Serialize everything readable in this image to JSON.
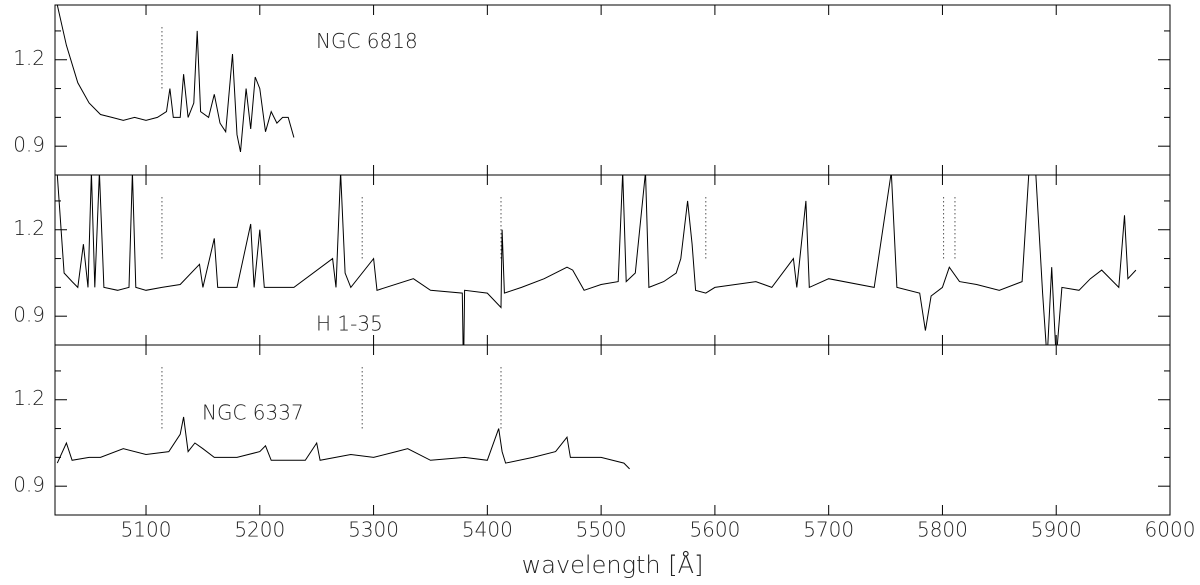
{
  "chart_data": [
    {
      "type": "line",
      "annotation": "NGC 6818",
      "color": "#000000",
      "xlim": [
        5020,
        6000
      ],
      "ylim": [
        0.8,
        1.39
      ],
      "yticks": [
        0.9,
        1.2
      ],
      "yminor": [
        1.0,
        1.1,
        1.3
      ],
      "markers": [
        5114
      ],
      "x": [
        5022,
        5030,
        5040,
        5050,
        5060,
        5070,
        5080,
        5090,
        5100,
        5110,
        5118,
        5121,
        5124,
        5130,
        5133,
        5137,
        5142,
        5145,
        5148,
        5155,
        5160,
        5165,
        5170,
        5176,
        5180,
        5183,
        5188,
        5192,
        5196,
        5200,
        5205,
        5210,
        5215,
        5220,
        5225,
        5230
      ],
      "values": [
        1.39,
        1.25,
        1.12,
        1.05,
        1.01,
        1.0,
        0.99,
        1.0,
        0.99,
        1.0,
        1.02,
        1.1,
        1.0,
        1.0,
        1.15,
        1.0,
        1.05,
        1.3,
        1.02,
        1.0,
        1.08,
        0.98,
        0.95,
        1.22,
        0.94,
        0.88,
        1.1,
        0.96,
        1.14,
        1.1,
        0.95,
        1.02,
        0.98,
        1.0,
        1.0,
        0.93
      ]
    },
    {
      "type": "line",
      "annotation": "H 1-35",
      "color": "#000000",
      "xlim": [
        5020,
        6000
      ],
      "ylim": [
        0.8,
        1.39
      ],
      "yticks": [
        0.9,
        1.2
      ],
      "yminor": [
        1.0,
        1.1,
        1.3
      ],
      "markers": [
        5114,
        5290,
        5412,
        5592,
        5801,
        5811
      ],
      "x": [
        5022,
        5028,
        5035,
        5040,
        5045,
        5049,
        5052,
        5055,
        5059,
        5063,
        5075,
        5085,
        5088,
        5091,
        5100,
        5114,
        5130,
        5147,
        5150,
        5160,
        5163,
        5180,
        5192,
        5195,
        5200,
        5204,
        5230,
        5264,
        5267,
        5271,
        5275,
        5280,
        5300,
        5303,
        5335,
        5350,
        5378,
        5379,
        5380,
        5400,
        5412,
        5413,
        5415,
        5430,
        5450,
        5470,
        5475,
        5485,
        5500,
        5515,
        5519,
        5522,
        5530,
        5539,
        5542,
        5555,
        5566,
        5570,
        5576,
        5580,
        5583,
        5592,
        5600,
        5636,
        5650,
        5669,
        5672,
        5680,
        5683,
        5700,
        5740,
        5755,
        5760,
        5780,
        5785,
        5790,
        5800,
        5806,
        5815,
        5830,
        5850,
        5870,
        5876,
        5882,
        5888,
        5892,
        5896,
        5900,
        5905,
        5920,
        5930,
        5940,
        5950,
        5955,
        5960,
        5963,
        5970
      ],
      "values": [
        1.39,
        1.05,
        1.02,
        1.0,
        1.15,
        1.0,
        1.4,
        1.0,
        1.4,
        1.0,
        0.99,
        1.0,
        1.4,
        1.0,
        0.99,
        1.0,
        1.01,
        1.08,
        1.0,
        1.17,
        1.0,
        1.0,
        1.22,
        1.0,
        1.2,
        1.0,
        1.0,
        1.1,
        1.0,
        1.4,
        1.05,
        1.0,
        1.1,
        0.99,
        1.03,
        0.99,
        0.98,
        0.7,
        0.99,
        0.98,
        0.93,
        1.2,
        0.98,
        1.0,
        1.03,
        1.07,
        1.06,
        0.99,
        1.01,
        1.02,
        1.4,
        1.02,
        1.05,
        1.4,
        1.0,
        1.02,
        1.05,
        1.1,
        1.3,
        1.15,
        0.99,
        0.98,
        1.0,
        1.02,
        1.0,
        1.1,
        1.0,
        1.3,
        1.0,
        1.03,
        1.0,
        1.4,
        1.0,
        0.98,
        0.85,
        0.97,
        1.0,
        1.07,
        1.02,
        1.01,
        0.99,
        1.02,
        1.4,
        1.4,
        0.98,
        0.75,
        1.07,
        0.75,
        1.0,
        0.99,
        1.03,
        1.06,
        1.02,
        1.0,
        1.25,
        1.03,
        1.06
      ]
    },
    {
      "type": "line",
      "annotation": "NGC 6337",
      "color": "#000000",
      "xlim": [
        5020,
        6000
      ],
      "ylim": [
        0.8,
        1.39
      ],
      "yticks": [
        0.9,
        1.2
      ],
      "yminor": [
        1.0,
        1.1,
        1.3
      ],
      "markers": [
        5114,
        5290,
        5412
      ],
      "xticks": [
        5100,
        5200,
        5300,
        5400,
        5500,
        5600,
        5700,
        5800,
        5900,
        6000
      ],
      "xlabel": "wavelength [Å]",
      "x": [
        5022,
        5030,
        5035,
        5050,
        5060,
        5080,
        5100,
        5120,
        5130,
        5133,
        5137,
        5143,
        5150,
        5160,
        5180,
        5200,
        5205,
        5210,
        5240,
        5250,
        5253,
        5280,
        5300,
        5320,
        5330,
        5350,
        5380,
        5400,
        5410,
        5413,
        5416,
        5440,
        5460,
        5470,
        5473,
        5500,
        5520,
        5525
      ],
      "values": [
        0.98,
        1.05,
        0.99,
        1.0,
        1.0,
        1.03,
        1.01,
        1.02,
        1.08,
        1.14,
        1.02,
        1.05,
        1.03,
        1.0,
        1.0,
        1.02,
        1.04,
        0.99,
        0.99,
        1.05,
        0.99,
        1.01,
        1.0,
        1.02,
        1.03,
        0.99,
        1.0,
        0.99,
        1.1,
        1.02,
        0.98,
        1.0,
        1.02,
        1.07,
        1.0,
        1.0,
        0.98,
        0.96
      ]
    }
  ]
}
